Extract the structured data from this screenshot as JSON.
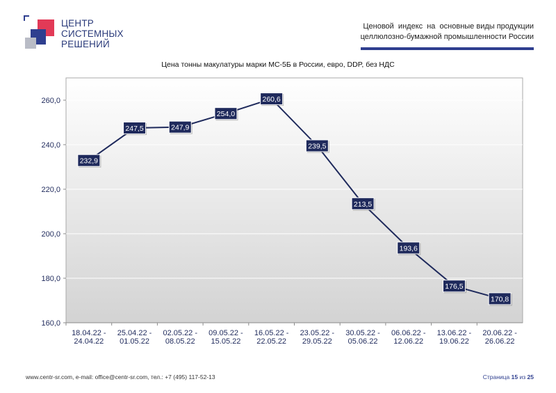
{
  "logo": {
    "line1": "ЦЕНТР",
    "line2": "СИСТЕМНЫХ",
    "line3": "РЕШЕНИЙ"
  },
  "header": {
    "line1": "Ценовой  индекс  на  основные виды продукции",
    "line2": "целлюлозно-бумажной промышленности России"
  },
  "chart_data": {
    "type": "line",
    "title": "Цена тонны макулатуры марки МС-5Б в России, евро, DDP, без НДС",
    "categories": [
      [
        "18.04.22 -",
        "24.04.22"
      ],
      [
        "25.04.22 -",
        "01.05.22"
      ],
      [
        "02.05.22 -",
        "08.05.22"
      ],
      [
        "09.05.22 -",
        "15.05.22"
      ],
      [
        "16.05.22 -",
        "22.05.22"
      ],
      [
        "23.05.22 -",
        "29.05.22"
      ],
      [
        "30.05.22 -",
        "05.06.22"
      ],
      [
        "06.06.22 -",
        "12.06.22"
      ],
      [
        "13.06.22 -",
        "19.06.22"
      ],
      [
        "20.06.22 -",
        "26.06.22"
      ]
    ],
    "values": [
      232.9,
      247.5,
      247.9,
      254.0,
      260.6,
      239.5,
      213.5,
      193.6,
      176.5,
      170.8
    ],
    "value_labels": [
      "232,9",
      "247,5",
      "247,9",
      "254,0",
      "260,6",
      "239,5",
      "213,5",
      "193,6",
      "176,5",
      "170,8"
    ],
    "ylim": [
      160,
      270
    ],
    "yticks": [
      160,
      180,
      200,
      220,
      240,
      260
    ],
    "ytick_labels": [
      "160,0",
      "180,0",
      "200,0",
      "220,0",
      "240,0",
      "260,0"
    ],
    "grid": true,
    "line_color": "#1f2a5c",
    "label_bg": "#1f2a5c",
    "label_color": "#ffffff",
    "axis_text_color": "#1f2a5c"
  },
  "footer": {
    "contacts": "www.centr-sr.com, e-mail: office@centr-sr.com, тел.: +7 (495) 117-52-13",
    "page_prefix": "Страница",
    "page_current": "15",
    "page_sep": "из",
    "page_total": "25"
  }
}
